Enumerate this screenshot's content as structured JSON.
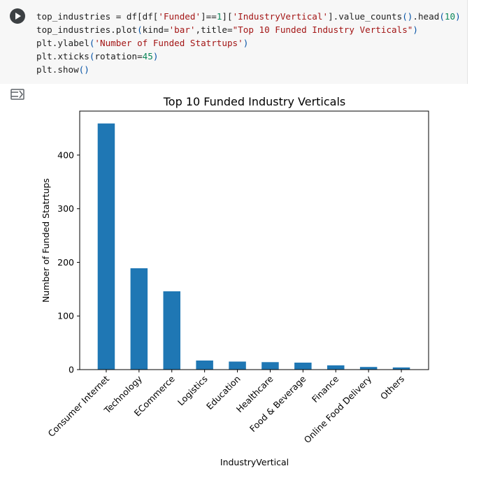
{
  "cell": {
    "run_button": "play-icon",
    "output_toggle_icon": "output-collapse-icon",
    "code_lines": [
      [
        {
          "t": "top_industries = df[df[",
          "c": "plain"
        },
        {
          "t": "'Funded'",
          "c": "str"
        },
        {
          "t": "]==",
          "c": "plain"
        },
        {
          "t": "1",
          "c": "num"
        },
        {
          "t": "][",
          "c": "plain"
        },
        {
          "t": "'IndustryVertical'",
          "c": "str"
        },
        {
          "t": "].value_counts",
          "c": "plain"
        },
        {
          "t": "()",
          "c": "paren"
        },
        {
          "t": ".head",
          "c": "plain"
        },
        {
          "t": "(",
          "c": "paren"
        },
        {
          "t": "10",
          "c": "num"
        },
        {
          "t": ")",
          "c": "paren"
        }
      ],
      [
        {
          "t": "top_industries.plot",
          "c": "plain"
        },
        {
          "t": "(",
          "c": "paren"
        },
        {
          "t": "kind=",
          "c": "plain"
        },
        {
          "t": "'bar'",
          "c": "str"
        },
        {
          "t": ",title=",
          "c": "plain"
        },
        {
          "t": "\"Top 10 Funded Industry Verticals\"",
          "c": "str"
        },
        {
          "t": ")",
          "c": "paren"
        }
      ],
      [
        {
          "t": "plt.ylabel",
          "c": "plain"
        },
        {
          "t": "(",
          "c": "paren"
        },
        {
          "t": "'Number of Funded Statrtups'",
          "c": "str"
        },
        {
          "t": ")",
          "c": "paren"
        }
      ],
      [
        {
          "t": "plt.xticks",
          "c": "plain"
        },
        {
          "t": "(",
          "c": "paren"
        },
        {
          "t": "rotation=",
          "c": "plain"
        },
        {
          "t": "45",
          "c": "num"
        },
        {
          "t": ")",
          "c": "paren"
        }
      ],
      [
        {
          "t": "plt.show",
          "c": "plain"
        },
        {
          "t": "()",
          "c": "paren"
        }
      ]
    ]
  },
  "colors": {
    "bar": "#1f77b4",
    "string": "#a31515",
    "number": "#098658",
    "paren": "#0451a5"
  },
  "chart_data": {
    "type": "bar",
    "title": "Top 10 Funded Industry Verticals",
    "xlabel": "IndustryVertical",
    "ylabel": "Number of Funded Statrtups",
    "categories": [
      "Consumer Internet",
      "Technology",
      "ECommerce",
      "Logistics",
      "Education",
      "Healthcare",
      "Food & Beverage",
      "Finance",
      "Online Food Delivery",
      "Others"
    ],
    "values": [
      459,
      189,
      146,
      17,
      15,
      14,
      13,
      8,
      5,
      4
    ],
    "yticks": [
      0,
      100,
      200,
      300,
      400
    ],
    "ylim": [
      0,
      482
    ],
    "grid": false,
    "legend": "none",
    "xtick_rotation": 45
  }
}
